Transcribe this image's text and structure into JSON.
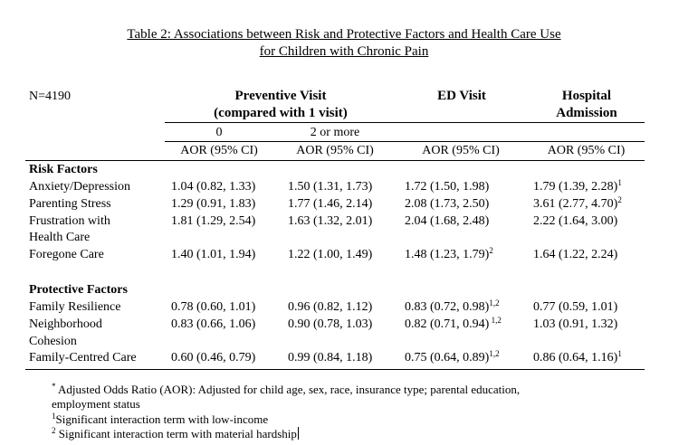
{
  "title": {
    "line1": "Table 2: Associations between Risk and Protective Factors and Health Care Use",
    "line2": "for Children with Chronic Pain"
  },
  "n_label": "N=4190",
  "headers": {
    "preventive_line1": "Preventive Visit",
    "preventive_line2": "(compared with 1 visit)",
    "ed": "ED Visit",
    "hospital_line1": "Hospital",
    "hospital_line2": "Admission",
    "sub_zero": "0",
    "sub_two": "2 or more",
    "aor": [
      "AOR (95% CI)",
      "AOR (95% CI)",
      "AOR (95% CI)",
      "AOR (95% CI)"
    ]
  },
  "sections": [
    {
      "title": "Risk Factors",
      "rows": [
        {
          "label": [
            "Anxiety/Depression"
          ],
          "cells": [
            {
              "v": "1.04 (0.82, 1.33)",
              "s": ""
            },
            {
              "v": "1.50 (1.31, 1.73)",
              "s": ""
            },
            {
              "v": "1.72 (1.50, 1.98)",
              "s": ""
            },
            {
              "v": "1.79 (1.39, 2.28)",
              "s": "1"
            }
          ]
        },
        {
          "label": [
            "Parenting Stress"
          ],
          "cells": [
            {
              "v": "1.29 (0.91, 1.83)",
              "s": ""
            },
            {
              "v": "1.77 (1.46, 2.14)",
              "s": ""
            },
            {
              "v": "2.08 (1.73, 2.50)",
              "s": ""
            },
            {
              "v": "3.61 (2.77, 4.70)",
              "s": "2"
            }
          ]
        },
        {
          "label": [
            "Frustration with",
            "Health Care"
          ],
          "cells": [
            {
              "v": "1.81 (1.29, 2.54)",
              "s": ""
            },
            {
              "v": "1.63 (1.32, 2.01)",
              "s": ""
            },
            {
              "v": "2.04 (1.68, 2.48)",
              "s": ""
            },
            {
              "v": "2.22 (1.64, 3.00)",
              "s": ""
            }
          ]
        },
        {
          "label": [
            "Foregone Care"
          ],
          "cells": [
            {
              "v": "1.40 (1.01, 1.94)",
              "s": ""
            },
            {
              "v": "1.22 (1.00, 1.49)",
              "s": ""
            },
            {
              "v": "1.48 (1.23, 1.79)",
              "s": "2"
            },
            {
              "v": "1.64 (1.22, 2.24)",
              "s": ""
            }
          ]
        }
      ]
    },
    {
      "title": "Protective Factors",
      "rows": [
        {
          "label": [
            "Family Resilience"
          ],
          "cells": [
            {
              "v": "0.78 (0.60, 1.01)",
              "s": ""
            },
            {
              "v": "0.96 (0.82, 1.12)",
              "s": ""
            },
            {
              "v": "0.83 (0.72, 0.98)",
              "s": "1,2"
            },
            {
              "v": "0.77 (0.59, 1.01)",
              "s": ""
            }
          ]
        },
        {
          "label": [
            "Neighborhood",
            "Cohesion"
          ],
          "cells": [
            {
              "v": "0.83 (0.66, 1.06)",
              "s": ""
            },
            {
              "v": "0.90 (0.78, 1.03)",
              "s": ""
            },
            {
              "v": "0.82 (0.71, 0.94)",
              "s": " 1,2"
            },
            {
              "v": "1.03 (0.91, 1.32)",
              "s": ""
            }
          ]
        },
        {
          "label": [
            "Family-Centred Care"
          ],
          "cells": [
            {
              "v": "0.60 (0.46, 0.79)",
              "s": ""
            },
            {
              "v": "0.99 (0.84, 1.18)",
              "s": ""
            },
            {
              "v": "0.75 (0.64, 0.89)",
              "s": "1,2"
            },
            {
              "v": "0.86 (0.64, 1.16)",
              "s": "1"
            }
          ]
        }
      ]
    }
  ],
  "footnotes": {
    "aor_mark": "*",
    "aor_line1": " Adjusted Odds Ratio (AOR): Adjusted for child age, sex, race, insurance type; parental education,",
    "aor_line2": "employment status",
    "note1_mark": "1",
    "note1_text": "Significant interaction term with low-income",
    "note2_mark": "2",
    "note2_text": " Significant interaction term with material hardship"
  }
}
